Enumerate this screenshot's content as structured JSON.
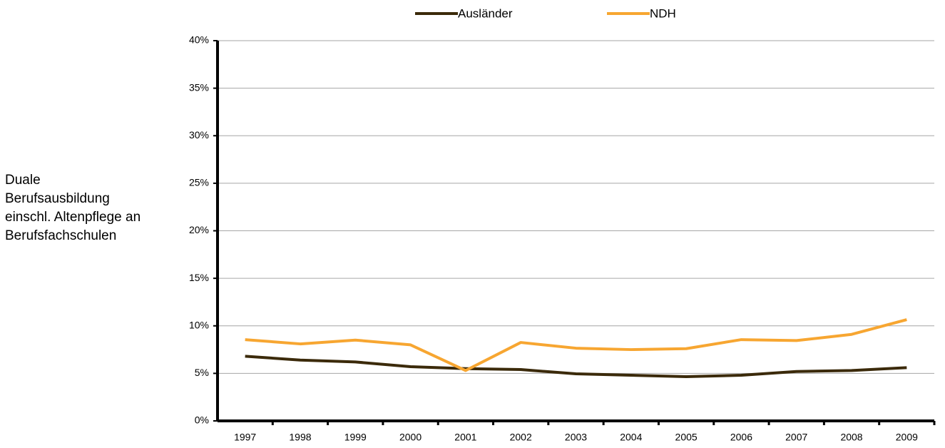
{
  "chart_data": {
    "type": "line",
    "y_label": "Duale Berufsausbildung einschl. Altenpflege an Berufsfachschulen",
    "categories": [
      "1997",
      "1998",
      "1999",
      "2000",
      "2001",
      "2002",
      "2003",
      "2004",
      "2005",
      "2006",
      "2007",
      "2008",
      "2009"
    ],
    "series": [
      {
        "name": "Ausländer",
        "color": "#3b2a0a",
        "values": [
          6.8,
          6.4,
          6.2,
          5.7,
          5.5,
          5.4,
          4.95,
          4.8,
          4.65,
          4.8,
          5.2,
          5.3,
          5.6
        ]
      },
      {
        "name": "NDH",
        "color": "#f7a631",
        "values": [
          8.55,
          8.1,
          8.5,
          8.0,
          5.3,
          8.25,
          7.65,
          7.5,
          7.6,
          8.55,
          8.45,
          9.1,
          10.65
        ]
      }
    ],
    "ylim": [
      0,
      40
    ],
    "yticks": [
      {
        "value": 0,
        "label": "0%"
      },
      {
        "value": 5,
        "label": "5%"
      },
      {
        "value": 10,
        "label": "10%"
      },
      {
        "value": 15,
        "label": "15%"
      },
      {
        "value": 20,
        "label": "20%"
      },
      {
        "value": 25,
        "label": "25%"
      },
      {
        "value": 30,
        "label": "30%"
      },
      {
        "value": 35,
        "label": "35%"
      },
      {
        "value": 40,
        "label": "40%"
      }
    ],
    "grid": true,
    "legend": "top"
  }
}
